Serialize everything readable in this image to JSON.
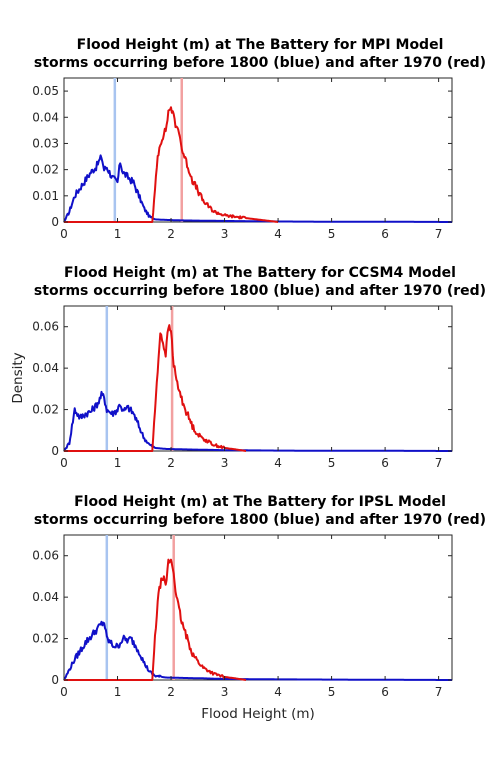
{
  "figure": {
    "xlabel": "Flood Height (m)",
    "ylabel": "Density"
  },
  "chart_data": [
    {
      "type": "line",
      "title": "Flood Height (m) at The Battery for MPI Model",
      "subtitle": "storms occurring before 1800 (blue) and after 1970 (red)",
      "xlim": [
        0,
        7.25
      ],
      "ylim": [
        0,
        0.055
      ],
      "xticks": [
        "0",
        "1",
        "2",
        "3",
        "4",
        "5",
        "6",
        "7"
      ],
      "yticks": [
        "0",
        "0.01",
        "0.02",
        "0.03",
        "0.04",
        "0.05"
      ],
      "vlines": [
        {
          "x": 0.95,
          "color": "#a8c4f0"
        },
        {
          "x": 2.2,
          "color": "#f2a0a0"
        }
      ],
      "series": [
        {
          "color": "#1010c8",
          "x": [
            0,
            0.1,
            0.2,
            0.3,
            0.4,
            0.5,
            0.6,
            0.7,
            0.75,
            0.8,
            0.9,
            1.0,
            1.05,
            1.1,
            1.2,
            1.3,
            1.4,
            1.5,
            1.6,
            1.7,
            1.9,
            2.2,
            2.6,
            3.0,
            3.5,
            4.0,
            5.0,
            6.0,
            7.25
          ],
          "y": [
            0,
            0.004,
            0.01,
            0.013,
            0.016,
            0.019,
            0.021,
            0.025,
            0.02,
            0.021,
            0.017,
            0.015,
            0.023,
            0.019,
            0.017,
            0.015,
            0.01,
            0.005,
            0.002,
            0.001,
            0.0008,
            0.0006,
            0.0005,
            0.0004,
            0.0003,
            0.0002,
            0.0001,
            0.0001,
            0
          ]
        },
        {
          "color": "#e01010",
          "x": [
            0,
            1.65,
            1.7,
            1.75,
            1.8,
            1.85,
            1.9,
            1.95,
            2.0,
            2.05,
            2.1,
            2.15,
            2.2,
            2.3,
            2.4,
            2.5,
            2.6,
            2.7,
            2.8,
            3.0,
            3.2,
            3.4,
            3.6,
            3.8,
            4.0
          ],
          "y": [
            0,
            0,
            0.012,
            0.025,
            0.03,
            0.033,
            0.035,
            0.042,
            0.044,
            0.04,
            0.036,
            0.035,
            0.028,
            0.022,
            0.016,
            0.012,
            0.008,
            0.006,
            0.004,
            0.0025,
            0.002,
            0.0015,
            0.001,
            0.0005,
            0
          ]
        }
      ]
    },
    {
      "type": "line",
      "title": "Flood Height (m) at The Battery for CCSM4 Model",
      "subtitle": "storms occurring before 1800 (blue) and after 1970 (red)",
      "xlim": [
        0,
        7.25
      ],
      "ylim": [
        0,
        0.07
      ],
      "xticks": [
        "0",
        "1",
        "2",
        "3",
        "4",
        "5",
        "6",
        "7"
      ],
      "yticks": [
        "0",
        "0.02",
        "0.04",
        "0.06"
      ],
      "vlines": [
        {
          "x": 0.8,
          "color": "#a8c4f0"
        },
        {
          "x": 2.02,
          "color": "#f2a0a0"
        }
      ],
      "series": [
        {
          "color": "#1010c8",
          "x": [
            0,
            0.1,
            0.15,
            0.2,
            0.3,
            0.4,
            0.5,
            0.6,
            0.65,
            0.7,
            0.75,
            0.8,
            0.9,
            1.0,
            1.05,
            1.1,
            1.2,
            1.3,
            1.4,
            1.5,
            1.6,
            1.7,
            1.9,
            2.2,
            2.6,
            3.0,
            3.5,
            4.0,
            5.0,
            6.0,
            7.25
          ],
          "y": [
            0,
            0.004,
            0.012,
            0.02,
            0.016,
            0.018,
            0.019,
            0.022,
            0.024,
            0.027,
            0.026,
            0.02,
            0.018,
            0.02,
            0.023,
            0.019,
            0.021,
            0.018,
            0.012,
            0.006,
            0.003,
            0.0015,
            0.001,
            0.0008,
            0.0006,
            0.0004,
            0.0003,
            0.0002,
            0.0001,
            0.0001,
            0
          ]
        },
        {
          "color": "#e01010",
          "x": [
            0,
            1.65,
            1.7,
            1.75,
            1.8,
            1.85,
            1.9,
            1.95,
            2.0,
            2.05,
            2.1,
            2.2,
            2.3,
            2.4,
            2.5,
            2.6,
            2.8,
            3.0,
            3.2,
            3.4
          ],
          "y": [
            0,
            0,
            0.02,
            0.038,
            0.058,
            0.052,
            0.047,
            0.06,
            0.058,
            0.042,
            0.034,
            0.025,
            0.018,
            0.012,
            0.008,
            0.006,
            0.003,
            0.0015,
            0.0008,
            0
          ]
        }
      ]
    },
    {
      "type": "line",
      "title": "Flood Height (m) at The Battery for IPSL Model",
      "subtitle": "storms occurring before 1800 (blue) and after 1970 (red)",
      "xlim": [
        0,
        7.25
      ],
      "ylim": [
        0,
        0.07
      ],
      "xticks": [
        "0",
        "1",
        "2",
        "3",
        "4",
        "5",
        "6",
        "7"
      ],
      "yticks": [
        "0",
        "0.02",
        "0.04",
        "0.06"
      ],
      "vlines": [
        {
          "x": 0.8,
          "color": "#a8c4f0"
        },
        {
          "x": 2.05,
          "color": "#f2a0a0"
        }
      ],
      "series": [
        {
          "color": "#1010c8",
          "x": [
            0,
            0.1,
            0.2,
            0.3,
            0.4,
            0.5,
            0.6,
            0.7,
            0.75,
            0.8,
            0.9,
            1.0,
            1.1,
            1.2,
            1.25,
            1.3,
            1.4,
            1.5,
            1.6,
            1.7,
            1.9,
            2.2,
            2.6,
            3.0,
            3.5,
            4.0,
            5.0,
            6.0,
            7.25
          ],
          "y": [
            0,
            0.005,
            0.01,
            0.014,
            0.018,
            0.021,
            0.024,
            0.027,
            0.028,
            0.02,
            0.017,
            0.016,
            0.02,
            0.019,
            0.02,
            0.018,
            0.014,
            0.008,
            0.004,
            0.002,
            0.0012,
            0.001,
            0.0008,
            0.0005,
            0.0004,
            0.0003,
            0.0002,
            0.0001,
            0
          ]
        },
        {
          "color": "#e01010",
          "x": [
            0,
            1.65,
            1.7,
            1.75,
            1.8,
            1.85,
            1.9,
            1.95,
            2.0,
            2.05,
            2.1,
            2.2,
            2.3,
            2.4,
            2.5,
            2.6,
            2.8,
            3.0,
            3.2,
            3.4
          ],
          "y": [
            0,
            0,
            0.02,
            0.038,
            0.046,
            0.05,
            0.045,
            0.057,
            0.058,
            0.052,
            0.04,
            0.028,
            0.02,
            0.013,
            0.009,
            0.006,
            0.003,
            0.0015,
            0.0008,
            0
          ]
        }
      ]
    }
  ]
}
